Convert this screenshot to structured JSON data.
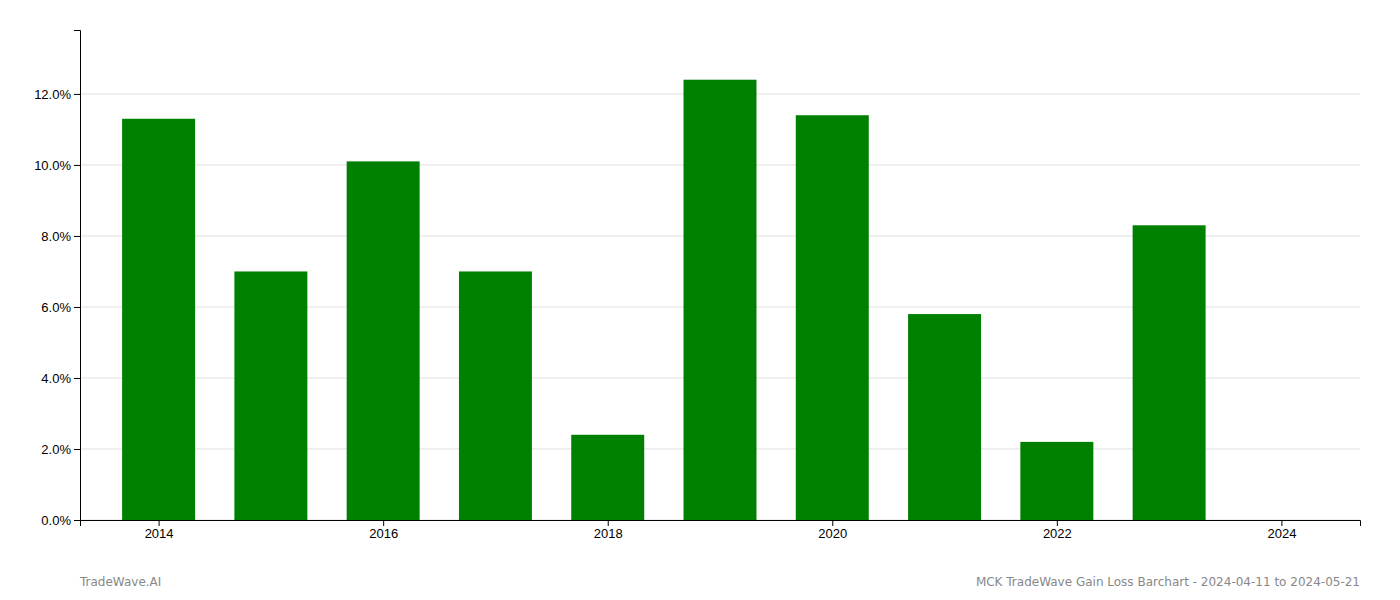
{
  "chart_data": {
    "type": "bar",
    "x": [
      2014,
      2015,
      2016,
      2017,
      2018,
      2019,
      2020,
      2021,
      2022,
      2023
    ],
    "values": [
      0.113,
      0.07,
      0.101,
      0.07,
      0.024,
      0.124,
      0.114,
      0.058,
      0.022,
      0.083
    ],
    "color": "#008000",
    "xlim": [
      2013.3,
      2024.7
    ],
    "xticks": [
      2014,
      2016,
      2018,
      2020,
      2022,
      2024
    ],
    "ylim": [
      0.0,
      0.138
    ],
    "yticks": [
      {
        "value": 0.0,
        "label": "0.0%"
      },
      {
        "value": 0.02,
        "label": "2.0%"
      },
      {
        "value": 0.04,
        "label": "4.0%"
      },
      {
        "value": 0.06,
        "label": "6.0%"
      },
      {
        "value": 0.08,
        "label": "8.0%"
      },
      {
        "value": 0.1,
        "label": "10.0%"
      },
      {
        "value": 0.12,
        "label": "12.0%"
      }
    ],
    "grid": true,
    "annotations": [
      "TradeWave.AI",
      "MCK TradeWave Gain Loss Barchart - 2024-04-11 to 2024-05-21"
    ]
  }
}
